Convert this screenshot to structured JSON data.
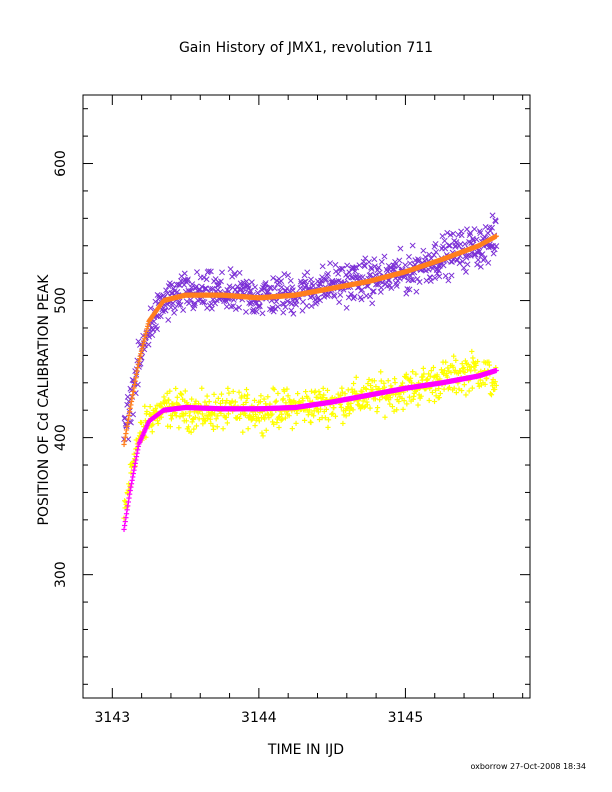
{
  "chart_data": {
    "type": "scatter",
    "title": "Gain History of JMX1, revolution 711",
    "xlabel": "TIME IN IJD",
    "ylabel": "POSITION OF Cd CALIBRATION PEAK",
    "xlim": [
      3142.8,
      3145.85
    ],
    "ylim": [
      210,
      650
    ],
    "x_ticks": [
      3143,
      3144,
      3145
    ],
    "x_tick_labels": [
      "3143",
      "3144",
      "3145"
    ],
    "y_ticks": [
      300,
      400,
      500,
      600
    ],
    "y_tick_labels": [
      "300",
      "400",
      "500",
      "600"
    ],
    "grid": false,
    "legend": "none",
    "footer": "oxborrow 27-Oct-2008 18:34",
    "series": [
      {
        "marker": "x",
        "color": "#7B2FD6",
        "x_range": [
          3143.08,
          3145.62
        ],
        "values": [
          [
            3143.08,
            400
          ],
          [
            3143.15,
            440
          ],
          [
            3143.25,
            480
          ],
          [
            3143.35,
            498
          ],
          [
            3143.5,
            505
          ],
          [
            3143.75,
            505
          ],
          [
            3144.0,
            503
          ],
          [
            3144.25,
            505
          ],
          [
            3144.5,
            512
          ],
          [
            3144.75,
            515
          ],
          [
            3145.0,
            520
          ],
          [
            3145.25,
            532
          ],
          [
            3145.5,
            540
          ],
          [
            3145.62,
            545
          ]
        ],
        "scatter": 22
      },
      {
        "marker": "+",
        "color": "#FF7F1E",
        "values": [
          [
            3143.08,
            395
          ],
          [
            3143.12,
            420
          ],
          [
            3143.18,
            455
          ],
          [
            3143.25,
            485
          ],
          [
            3143.35,
            500
          ],
          [
            3143.5,
            504
          ],
          [
            3143.75,
            504
          ],
          [
            3144.0,
            502
          ],
          [
            3144.25,
            504
          ],
          [
            3144.5,
            509
          ],
          [
            3144.75,
            514
          ],
          [
            3145.0,
            521
          ],
          [
            3145.25,
            530
          ],
          [
            3145.5,
            540
          ],
          [
            3145.62,
            547
          ]
        ]
      },
      {
        "marker": "+",
        "color": "#FFFF00",
        "values": [
          [
            3143.08,
            340
          ],
          [
            3143.15,
            390
          ],
          [
            3143.25,
            415
          ],
          [
            3143.4,
            422
          ],
          [
            3143.6,
            418
          ],
          [
            3143.8,
            420
          ],
          [
            3144.0,
            420
          ],
          [
            3144.25,
            422
          ],
          [
            3144.5,
            425
          ],
          [
            3144.75,
            430
          ],
          [
            3145.0,
            435
          ],
          [
            3145.25,
            442
          ],
          [
            3145.5,
            450
          ],
          [
            3145.62,
            440
          ]
        ],
        "scatter": 20
      },
      {
        "marker": "+",
        "color": "#FF00FF",
        "values": [
          [
            3143.08,
            333
          ],
          [
            3143.12,
            360
          ],
          [
            3143.18,
            395
          ],
          [
            3143.25,
            412
          ],
          [
            3143.35,
            420
          ],
          [
            3143.5,
            422
          ],
          [
            3143.75,
            421
          ],
          [
            3144.0,
            421
          ],
          [
            3144.25,
            422
          ],
          [
            3144.5,
            426
          ],
          [
            3144.75,
            431
          ],
          [
            3145.0,
            436
          ],
          [
            3145.25,
            440
          ],
          [
            3145.5,
            445
          ],
          [
            3145.62,
            449
          ]
        ]
      }
    ]
  }
}
